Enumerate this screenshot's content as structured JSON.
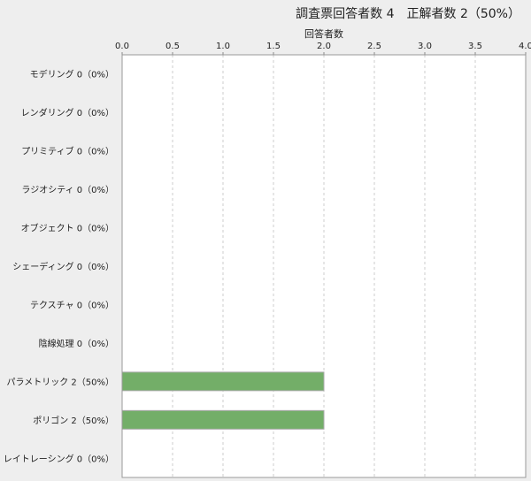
{
  "chart_data": {
    "type": "bar",
    "orientation": "horizontal",
    "title": "調査票回答者数 4　正解者数 2（50%）",
    "xlabel": "回答者数",
    "xlim": [
      0,
      4
    ],
    "xticks": [
      "0.0",
      "0.5",
      "1.0",
      "1.5",
      "2.0",
      "2.5",
      "3.0",
      "3.5",
      "4.0"
    ],
    "x_axis_position": "top",
    "grid": true,
    "categories": [
      "モデリング",
      "レンダリング",
      "プリミティブ",
      "ラジオシティ",
      "オブジェクト",
      "シェーディング",
      "テクスチャ",
      "陰線処理",
      "パラメトリック",
      "ポリゴン",
      "レイトレーシング"
    ],
    "category_labels": [
      "モデリング 0（0%）",
      "レンダリング 0（0%）",
      "プリミティブ 0（0%）",
      "ラジオシティ 0（0%）",
      "オブジェクト 0（0%）",
      "シェーディング 0（0%）",
      "テクスチャ 0（0%）",
      "陰線処理 0（0%）",
      "パラメトリック 2（50%）",
      "ポリゴン 2（50%）",
      "レイトレーシング 0（0%）"
    ],
    "values": [
      0,
      0,
      0,
      0,
      0,
      0,
      0,
      0,
      2,
      2,
      0
    ],
    "bar_color": "#73ae68"
  }
}
